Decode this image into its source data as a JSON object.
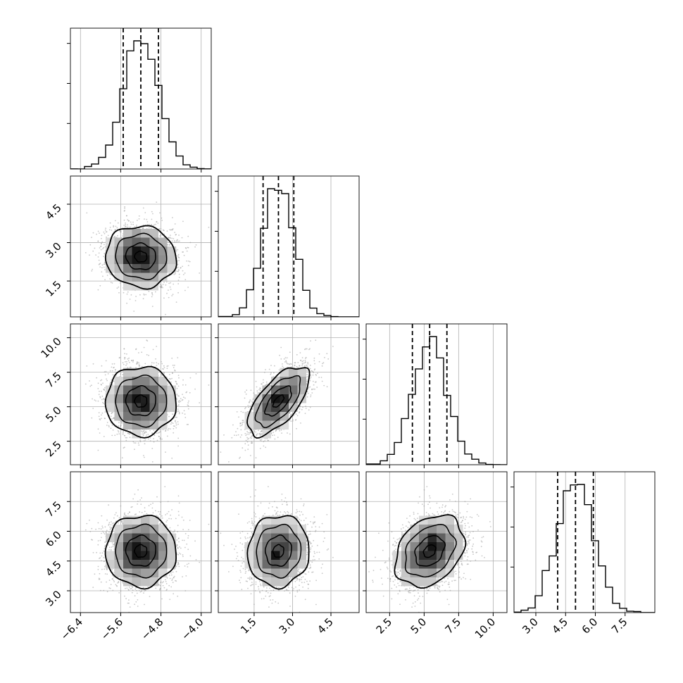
{
  "colors": {
    "background": "#ffffff",
    "axes": "#000000",
    "grid": "#b0b0b0",
    "scatter": "#9a9a9a",
    "contour": "#000000"
  },
  "chart_data": {
    "type": "corner",
    "dimensions": 4,
    "samples_approx": 5000,
    "grid": true,
    "ranges": [
      [
        -6.6,
        -3.8
      ],
      [
        0.1,
        5.6
      ],
      [
        0.8,
        11.0
      ],
      [
        1.9,
        9.0
      ]
    ],
    "ticks": [
      [
        -6.4,
        -5.6,
        -4.8,
        -4.0
      ],
      [
        1.5,
        3.0,
        4.5
      ],
      [
        2.5,
        5.0,
        7.5,
        10.0
      ],
      [
        3.0,
        4.5,
        6.0,
        7.5
      ]
    ],
    "tick_labels": [
      [
        "−6.4",
        "−5.6",
        "−4.8",
        "−4.0"
      ],
      [
        "1.5",
        "3.0",
        "4.5"
      ],
      [
        "2.5",
        "5.0",
        "7.5",
        "10.0"
      ],
      [
        "3.0",
        "4.5",
        "6.0",
        "7.5"
      ]
    ],
    "means": [
      -5.2,
      2.45,
      5.4,
      5.0
    ],
    "stds": [
      0.35,
      0.6,
      1.25,
      0.9
    ],
    "quantiles_16_50_84": [
      [
        -5.55,
        -5.2,
        -4.85
      ],
      [
        1.85,
        2.45,
        3.05
      ],
      [
        4.15,
        5.4,
        6.65
      ],
      [
        4.1,
        5.0,
        5.9
      ]
    ],
    "correlations": [
      [
        1.0,
        -0.05,
        0.0,
        0.0
      ],
      [
        -0.05,
        1.0,
        0.65,
        0.05
      ],
      [
        0.0,
        0.65,
        1.0,
        0.3
      ],
      [
        0.0,
        0.05,
        0.3,
        1.0
      ]
    ],
    "histogram_style": "step",
    "contour_levels": 3
  }
}
